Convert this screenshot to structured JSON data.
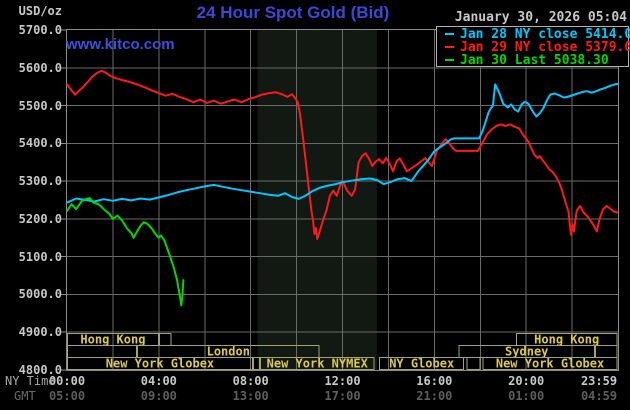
{
  "header": {
    "units_label": "USD/oz",
    "title": "24 Hour Spot Gold (Bid)",
    "website": "www.kitco.com",
    "datetime": "January 30, 2026 05:04"
  },
  "legend": {
    "items": [
      {
        "label": "Jan 28 NY close 5414.00",
        "color": "#00c8ff"
      },
      {
        "label": "Jan 29 NY close 5379.00",
        "color": "#ff1a1a"
      },
      {
        "label": "Jan 30 Last 5038.30",
        "color": "#00d900"
      }
    ]
  },
  "axis": {
    "ny_time_label": "NY Time",
    "gmt_label": "GMT"
  },
  "chart_data": {
    "type": "line",
    "title": "24 Hour Spot Gold (Bid)",
    "ylabel": "USD/oz",
    "ylim": [
      4800,
      5700
    ],
    "ytick_step": 100,
    "xlim_hours": [
      0,
      23.98
    ],
    "grid_step_hours": 2,
    "x_ticks": [
      {
        "hours": 0.0,
        "ny": "00:00",
        "gmt": "05:00"
      },
      {
        "hours": 4.0,
        "ny": "04:00",
        "gmt": "09:00"
      },
      {
        "hours": 8.0,
        "ny": "08:00",
        "gmt": "13:00"
      },
      {
        "hours": 12.0,
        "ny": "12:00",
        "gmt": "17:00"
      },
      {
        "hours": 16.0,
        "ny": "16:00",
        "gmt": "21:00"
      },
      {
        "hours": 20.0,
        "ny": "20:00",
        "gmt": "01:00"
      },
      {
        "hours": 23.98,
        "ny": "23:59",
        "gmt": "04:59"
      }
    ],
    "nymex_band_hours": [
      8.3,
      13.5
    ],
    "colors": {
      "background": "#000000",
      "grid": "#6a6a6a",
      "plot_border": "#8c8c8c",
      "band": "#121812",
      "session_border": "#a3a36b",
      "session_label": "#ddc94f",
      "axis_text": "#c8c8c8",
      "gmt_text": "#5e5e5e",
      "title": "#3a49d8",
      "link": "#3d50dc",
      "legend_border": "#b0b0b0"
    },
    "sessions": [
      {
        "row": 1,
        "boxes": [
          {
            "label": "Hong Kong",
            "from": 0,
            "to": 4.0
          },
          {
            "label": "",
            "from": 4.0,
            "to": 4.55
          },
          {
            "label": "Hong Kong",
            "from": 19.55,
            "to": 23.98
          }
        ]
      },
      {
        "row": 2,
        "boxes": [
          {
            "label": "",
            "from": 0,
            "to": 3.05
          },
          {
            "label": "London",
            "from": 3.05,
            "to": 11.0
          },
          {
            "label": "Sydney",
            "from": 17.05,
            "to": 23.0
          },
          {
            "label": "",
            "from": 23.0,
            "to": 23.98
          }
        ]
      },
      {
        "row": 3,
        "boxes": [
          {
            "label": "New York Globex",
            "from": 0,
            "to": 8.1
          },
          {
            "label": "",
            "from": 8.1,
            "to": 8.4
          },
          {
            "label": "New York NYMEX",
            "from": 8.4,
            "to": 13.4
          },
          {
            "label": "NY Globex",
            "from": 13.6,
            "to": 17.3
          },
          {
            "label": "",
            "from": 17.4,
            "to": 18.0
          },
          {
            "label": "New York Globex",
            "from": 18.1,
            "to": 23.98
          }
        ]
      }
    ],
    "series": [
      {
        "name": "Jan 28 NY close 5414.00",
        "color": "#00c8ff",
        "points": [
          [
            0,
            5243
          ],
          [
            0.4,
            5254
          ],
          [
            0.8,
            5250
          ],
          [
            1.2,
            5246
          ],
          [
            1.6,
            5252
          ],
          [
            2,
            5248
          ],
          [
            2.4,
            5253
          ],
          [
            2.8,
            5249
          ],
          [
            3.2,
            5254
          ],
          [
            3.6,
            5251
          ],
          [
            4,
            5257
          ],
          [
            4.4,
            5263
          ],
          [
            4.8,
            5270
          ],
          [
            5.2,
            5276
          ],
          [
            5.6,
            5281
          ],
          [
            6,
            5286
          ],
          [
            6.4,
            5290
          ],
          [
            6.8,
            5285
          ],
          [
            7.2,
            5280
          ],
          [
            7.6,
            5276
          ],
          [
            8,
            5272
          ],
          [
            8.4,
            5268
          ],
          [
            8.8,
            5264
          ],
          [
            9.2,
            5261
          ],
          [
            9.5,
            5268
          ],
          [
            9.8,
            5258
          ],
          [
            10.1,
            5253
          ],
          [
            10.4,
            5262
          ],
          [
            10.7,
            5274
          ],
          [
            11,
            5282
          ],
          [
            11.3,
            5287
          ],
          [
            11.7,
            5292
          ],
          [
            12,
            5297
          ],
          [
            12.4,
            5301
          ],
          [
            12.8,
            5305
          ],
          [
            13.2,
            5307
          ],
          [
            13.5,
            5303
          ],
          [
            13.8,
            5292
          ],
          [
            14.1,
            5298
          ],
          [
            14.4,
            5305
          ],
          [
            14.7,
            5308
          ],
          [
            15,
            5300
          ],
          [
            15.3,
            5326
          ],
          [
            15.7,
            5353
          ],
          [
            16,
            5379
          ],
          [
            16.3,
            5392
          ],
          [
            16.5,
            5400
          ],
          [
            16.7,
            5410
          ],
          [
            16.85,
            5413
          ],
          [
            17.95,
            5413
          ],
          [
            18.1,
            5432
          ],
          [
            18.25,
            5460
          ],
          [
            18.35,
            5480
          ],
          [
            18.45,
            5492
          ],
          [
            18.55,
            5500
          ],
          [
            18.65,
            5556
          ],
          [
            18.75,
            5543
          ],
          [
            18.85,
            5530
          ],
          [
            19,
            5505
          ],
          [
            19.2,
            5495
          ],
          [
            19.35,
            5503
          ],
          [
            19.5,
            5490
          ],
          [
            19.65,
            5484
          ],
          [
            19.8,
            5503
          ],
          [
            19.95,
            5510
          ],
          [
            20.1,
            5504
          ],
          [
            20.3,
            5483
          ],
          [
            20.45,
            5471
          ],
          [
            20.6,
            5480
          ],
          [
            20.75,
            5493
          ],
          [
            20.9,
            5513
          ],
          [
            21.05,
            5529
          ],
          [
            21.25,
            5532
          ],
          [
            21.45,
            5527
          ],
          [
            21.65,
            5521
          ],
          [
            21.85,
            5524
          ],
          [
            22.05,
            5528
          ],
          [
            22.25,
            5532
          ],
          [
            22.45,
            5536
          ],
          [
            22.65,
            5538
          ],
          [
            22.85,
            5534
          ],
          [
            23.05,
            5538
          ],
          [
            23.25,
            5543
          ],
          [
            23.45,
            5547
          ],
          [
            23.65,
            5552
          ],
          [
            23.85,
            5556
          ],
          [
            23.98,
            5557
          ]
        ]
      },
      {
        "name": "Jan 29 NY close 5379.00",
        "color": "#ff1a1a",
        "points": [
          [
            0,
            5556
          ],
          [
            0.2,
            5540
          ],
          [
            0.35,
            5529
          ],
          [
            0.5,
            5538
          ],
          [
            0.7,
            5549
          ],
          [
            0.9,
            5562
          ],
          [
            1.1,
            5576
          ],
          [
            1.3,
            5586
          ],
          [
            1.5,
            5592
          ],
          [
            1.7,
            5587
          ],
          [
            1.9,
            5578
          ],
          [
            2.2,
            5571
          ],
          [
            2.5,
            5566
          ],
          [
            2.8,
            5561
          ],
          [
            3.1,
            5555
          ],
          [
            3.4,
            5548
          ],
          [
            3.7,
            5540
          ],
          [
            4,
            5533
          ],
          [
            4.3,
            5526
          ],
          [
            4.6,
            5531
          ],
          [
            4.9,
            5523
          ],
          [
            5.2,
            5517
          ],
          [
            5.5,
            5509
          ],
          [
            5.8,
            5516
          ],
          [
            6.1,
            5507
          ],
          [
            6.4,
            5513
          ],
          [
            6.7,
            5505
          ],
          [
            7,
            5511
          ],
          [
            7.3,
            5516
          ],
          [
            7.6,
            5509
          ],
          [
            7.9,
            5517
          ],
          [
            8.2,
            5522
          ],
          [
            8.5,
            5529
          ],
          [
            8.8,
            5533
          ],
          [
            9.1,
            5535
          ],
          [
            9.4,
            5529
          ],
          [
            9.6,
            5523
          ],
          [
            9.8,
            5530
          ],
          [
            9.95,
            5519
          ],
          [
            10.05,
            5509
          ],
          [
            10.15,
            5478
          ],
          [
            10.25,
            5430
          ],
          [
            10.35,
            5379
          ],
          [
            10.45,
            5326
          ],
          [
            10.55,
            5270
          ],
          [
            10.65,
            5221
          ],
          [
            10.72,
            5195
          ],
          [
            10.78,
            5160
          ],
          [
            10.84,
            5176
          ],
          [
            10.9,
            5147
          ],
          [
            11,
            5165
          ],
          [
            11.15,
            5196
          ],
          [
            11.3,
            5222
          ],
          [
            11.45,
            5261
          ],
          [
            11.6,
            5275
          ],
          [
            11.75,
            5261
          ],
          [
            11.9,
            5290
          ],
          [
            12.05,
            5295
          ],
          [
            12.2,
            5275
          ],
          [
            12.4,
            5261
          ],
          [
            12.55,
            5278
          ],
          [
            12.7,
            5350
          ],
          [
            12.85,
            5366
          ],
          [
            13,
            5374
          ],
          [
            13.15,
            5360
          ],
          [
            13.3,
            5340
          ],
          [
            13.45,
            5352
          ],
          [
            13.6,
            5358
          ],
          [
            13.75,
            5347
          ],
          [
            13.9,
            5361
          ],
          [
            14.05,
            5347
          ],
          [
            14.2,
            5326
          ],
          [
            14.35,
            5352
          ],
          [
            14.5,
            5360
          ],
          [
            14.65,
            5344
          ],
          [
            14.8,
            5326
          ],
          [
            15,
            5334
          ],
          [
            15.3,
            5346
          ],
          [
            15.6,
            5361
          ],
          [
            15.9,
            5340
          ],
          [
            16.1,
            5379
          ],
          [
            16.3,
            5397
          ],
          [
            16.5,
            5411
          ],
          [
            16.65,
            5400
          ],
          [
            16.8,
            5387
          ],
          [
            16.95,
            5380
          ],
          [
            17.9,
            5380
          ],
          [
            18.1,
            5402
          ],
          [
            18.3,
            5424
          ],
          [
            18.5,
            5437
          ],
          [
            18.7,
            5446
          ],
          [
            18.9,
            5450
          ],
          [
            19.1,
            5446
          ],
          [
            19.3,
            5450
          ],
          [
            19.5,
            5444
          ],
          [
            19.7,
            5439
          ],
          [
            19.85,
            5424
          ],
          [
            20,
            5412
          ],
          [
            20.1,
            5404
          ],
          [
            20.2,
            5390
          ],
          [
            20.35,
            5371
          ],
          [
            20.5,
            5361
          ],
          [
            20.6,
            5366
          ],
          [
            20.7,
            5357
          ],
          [
            20.85,
            5345
          ],
          [
            21,
            5332
          ],
          [
            21.15,
            5324
          ],
          [
            21.3,
            5312
          ],
          [
            21.45,
            5294
          ],
          [
            21.55,
            5278
          ],
          [
            21.65,
            5258
          ],
          [
            21.75,
            5238
          ],
          [
            21.85,
            5218
          ],
          [
            21.95,
            5158
          ],
          [
            22.02,
            5186
          ],
          [
            22.08,
            5166
          ],
          [
            22.2,
            5222
          ],
          [
            22.35,
            5234
          ],
          [
            22.5,
            5217
          ],
          [
            22.65,
            5208
          ],
          [
            22.8,
            5196
          ],
          [
            22.95,
            5182
          ],
          [
            23.08,
            5167
          ],
          [
            23.2,
            5200
          ],
          [
            23.35,
            5225
          ],
          [
            23.5,
            5234
          ],
          [
            23.65,
            5228
          ],
          [
            23.8,
            5220
          ],
          [
            23.98,
            5217
          ]
        ]
      },
      {
        "name": "Jan 30 Last 5038.30",
        "color": "#00d900",
        "points": [
          [
            0,
            5221
          ],
          [
            0.2,
            5239
          ],
          [
            0.4,
            5226
          ],
          [
            0.65,
            5247
          ],
          [
            0.85,
            5253
          ],
          [
            1,
            5255
          ],
          [
            1.15,
            5243
          ],
          [
            1.4,
            5238
          ],
          [
            1.6,
            5226
          ],
          [
            1.85,
            5213
          ],
          [
            2,
            5200
          ],
          [
            2.2,
            5209
          ],
          [
            2.4,
            5196
          ],
          [
            2.6,
            5176
          ],
          [
            2.8,
            5163
          ],
          [
            2.9,
            5150
          ],
          [
            3,
            5161
          ],
          [
            3.2,
            5182
          ],
          [
            3.35,
            5191
          ],
          [
            3.5,
            5187
          ],
          [
            3.7,
            5174
          ],
          [
            3.85,
            5160
          ],
          [
            4,
            5150
          ],
          [
            4.1,
            5156
          ],
          [
            4.25,
            5142
          ],
          [
            4.35,
            5124
          ],
          [
            4.45,
            5108
          ],
          [
            4.55,
            5089
          ],
          [
            4.65,
            5071
          ],
          [
            4.72,
            5055
          ],
          [
            4.8,
            5037
          ],
          [
            4.85,
            5018
          ],
          [
            4.9,
            5002
          ],
          [
            4.95,
            4984
          ],
          [
            4.98,
            4971
          ],
          [
            5.02,
            4990
          ],
          [
            5.05,
            5020
          ],
          [
            5.07,
            5038
          ]
        ]
      }
    ]
  }
}
